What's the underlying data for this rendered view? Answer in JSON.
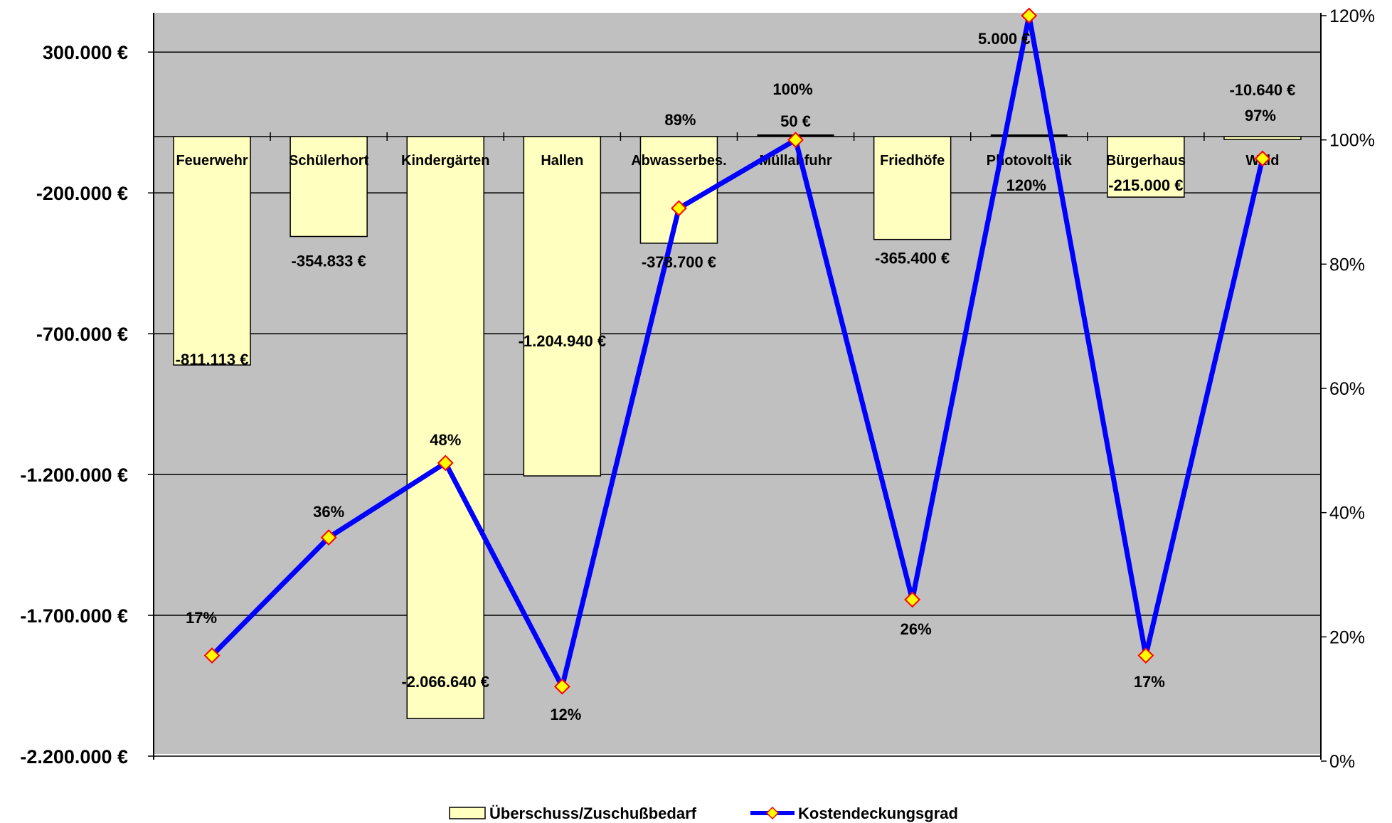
{
  "chart_data": {
    "type": "bar",
    "categories": [
      "Feuerwehr",
      "Schülerhort",
      "Kindergärten",
      "Hallen",
      "Abwasserbes.",
      "Müllabfuhr",
      "Friedhöfe",
      "Photovoltaik",
      "Bürgerhaus",
      "Wald"
    ],
    "series": [
      {
        "name": "Überschuss/Zuschußbedarf",
        "type": "bar",
        "axis": "left",
        "values": [
          -811113,
          -354833,
          -2066640,
          -1204940,
          -378700,
          50,
          -365400,
          5000,
          -215000,
          -10640
        ],
        "labels": [
          "-811.113 €",
          "-354.833 €",
          "-2.066.640 €",
          "-1.204.940 €",
          "-378.700 €",
          "50 €",
          "-365.400 €",
          "5.000 €",
          "-215.000 €",
          "-10.640 €"
        ]
      },
      {
        "name": "Kostendeckungsgrad",
        "type": "line",
        "axis": "right",
        "values": [
          17,
          36,
          48,
          12,
          89,
          100,
          26,
          120,
          17,
          97
        ],
        "labels": [
          "17%",
          "36%",
          "48%",
          "12%",
          "89%",
          "100%",
          "26%",
          "120%",
          "17%",
          "97%"
        ]
      }
    ],
    "y_left": {
      "ticks": [
        300000,
        -200000,
        -700000,
        -1200000,
        -1700000,
        -2200000
      ],
      "tick_labels": [
        "300.000 €",
        "-200.000 €",
        "-700.000 €",
        "-1.200.000 €",
        "-1.700.000 €",
        "-2.200.000 €"
      ],
      "range": [
        -2200000,
        500000
      ]
    },
    "y_right": {
      "ticks": [
        0,
        20,
        40,
        60,
        80,
        100,
        120
      ],
      "tick_labels": [
        "0%",
        "20%",
        "40%",
        "60%",
        "80%",
        "100%",
        "120%"
      ],
      "range": [
        0,
        120
      ]
    },
    "grid": true,
    "legend_position": "bottom",
    "colors": {
      "plot_background": "#c0c0c0",
      "bar_fill": "#ffffc0",
      "bar_stroke": "#000000",
      "line": "#0000ff",
      "marker_fill": "#ffff00",
      "marker_stroke": "#ff0000"
    }
  }
}
